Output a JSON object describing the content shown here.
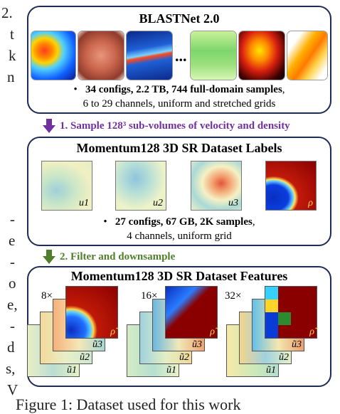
{
  "left_fragments": [
    "2.",
    "t",
    "k",
    "n",
    "-",
    "e",
    "-",
    "o",
    "e,",
    "-",
    "d",
    "s,",
    "V"
  ],
  "box1": {
    "title": "BLASTNet 2.0",
    "bullet_bold": "34 configs, 2.2 TB, 744 full-domain samples",
    "bullet_rest": ",",
    "line2": "6 to 29 channels, uniform and stretched grids",
    "ellipsis": "..."
  },
  "arrow1": {
    "label": "1. Sample 128³ sub-volumes of velocity and density",
    "color": "#7030a0"
  },
  "box2": {
    "title": "Momentum128 3D SR Dataset Labels",
    "panel_labels": [
      "u1",
      "u2",
      "u3",
      "ρ"
    ],
    "bullet_bold": "27 configs, 67 GB, 2K samples",
    "bullet_rest": ",",
    "line2": "4 channels, uniform grid"
  },
  "arrow2": {
    "label": "2. Filter and downsample",
    "color": "#4f7f2a"
  },
  "box3": {
    "title": "Momentum128 3D SR Dataset Features",
    "factors": [
      "8×",
      "16×",
      "32×"
    ],
    "layer_labels": [
      "ũ1",
      "ũ2",
      "ũ3",
      "ρ̃"
    ]
  },
  "caption_fragment": "Figure 1: Dataset used for this work"
}
